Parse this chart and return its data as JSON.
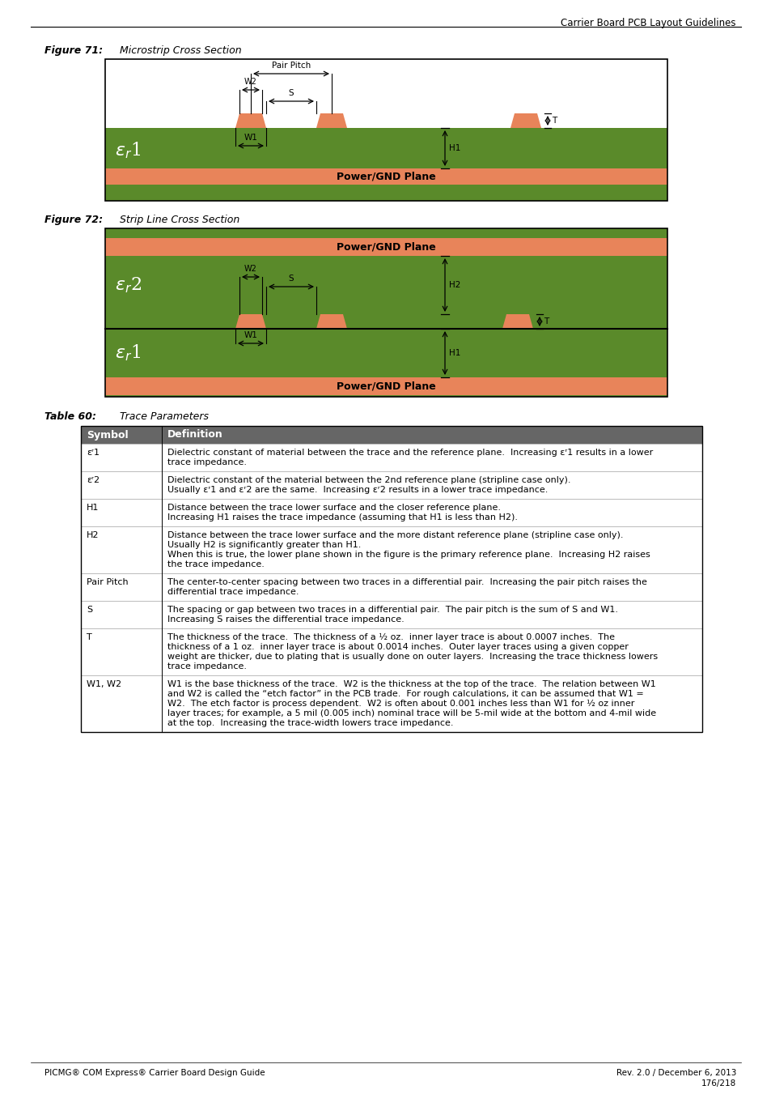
{
  "page_header": "Carrier Board PCB Layout Guidelines",
  "fig71_label": "Figure 71:",
  "fig71_title": "Microstrip Cross Section",
  "fig72_label": "Figure 72:",
  "fig72_title": "Strip Line Cross Section",
  "table_label": "Table 60:",
  "table_title": "Trace Parameters",
  "green_dark": "#5a8a2a",
  "orange_color": "#e8845a",
  "header_bg": "#666666",
  "header_fg": "#ffffff",
  "table_rows": [
    [
      "εʳ1",
      "Dielectric constant of material between the trace and the reference plane.  Increasing εʳ1 results in a lower\ntrace impedance."
    ],
    [
      "εʳ2",
      "Dielectric constant of the material between the 2nd reference plane (stripline case only).\nUsually εʳ1 and εʳ2 are the same.  Increasing εʳ2 results in a lower trace impedance."
    ],
    [
      "H1",
      "Distance between the trace lower surface and the closer reference plane.\nIncreasing H1 raises the trace impedance (assuming that H1 is less than H2)."
    ],
    [
      "H2",
      "Distance between the trace lower surface and the more distant reference plane (stripline case only).\nUsually H2 is significantly greater than H1.\nWhen this is true, the lower plane shown in the figure is the primary reference plane.  Increasing H2 raises\nthe trace impedance."
    ],
    [
      "Pair Pitch",
      "The center-to-center spacing between two traces in a differential pair.  Increasing the pair pitch raises the\ndifferential trace impedance."
    ],
    [
      "S",
      "The spacing or gap between two traces in a differential pair.  The pair pitch is the sum of S and W1.\nIncreasing S raises the differential trace impedance."
    ],
    [
      "T",
      "The thickness of the trace.  The thickness of a ½ oz.  inner layer trace is about 0.0007 inches.  The\nthickness of a 1 oz.  inner layer trace is about 0.0014 inches.  Outer layer traces using a given copper\nweight are thicker, due to plating that is usually done on outer layers.  Increasing the trace thickness lowers\ntrace impedance."
    ],
    [
      "W1, W2",
      "W1 is the base thickness of the trace.  W2 is the thickness at the top of the trace.  The relation between W1\nand W2 is called the “etch factor” in the PCB trade.  For rough calculations, it can be assumed that W1 =\nW2.  The etch factor is process dependent.  W2 is often about 0.001 inches less than W1 for ½ oz inner\nlayer traces; for example, a 5 mil (0.005 inch) nominal trace will be 5-mil wide at the bottom and 4-mil wide\nat the top.  Increasing the trace-width lowers trace impedance."
    ]
  ],
  "footer_left": "PICMG® COM Express® Carrier Board Design Guide",
  "footer_right_line1": "Rev. 2.0 / December 6, 2013",
  "footer_right_line2": "176/218"
}
